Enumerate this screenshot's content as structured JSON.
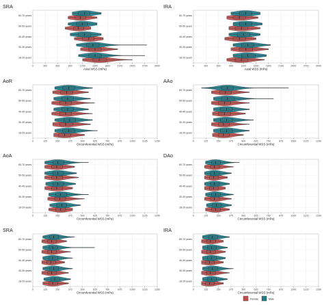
{
  "colors": {
    "female": "#c0504d",
    "male": "#1f7f8c",
    "outline": "#3a3a3a"
  },
  "legend": {
    "female": "Female",
    "male": "Male"
  },
  "chart_data": [
    {
      "type": "violin",
      "title": "SRA",
      "xlabel": "Axial WSS (mPa)",
      "xlim": [
        0,
        3000
      ],
      "xticks": [
        0,
        300,
        600,
        900,
        1200,
        1500,
        1800,
        2100,
        2400,
        2700,
        3000
      ],
      "categories": [
        "60-70 years",
        "50-59 years",
        "40-49 years",
        "30-39 years",
        "18-29 years"
      ],
      "series": [
        {
          "name": "Female",
          "median": [
            1150,
            1100,
            1350,
            1500,
            1600
          ],
          "q1": [
            1020,
            980,
            1200,
            1350,
            1450
          ],
          "q3": [
            1280,
            1230,
            1480,
            1650,
            1780
          ],
          "min": [
            850,
            780,
            1000,
            1150,
            1200
          ],
          "max": [
            1550,
            1400,
            1700,
            2050,
            2400
          ]
        },
        {
          "name": "Male",
          "median": [
            1250,
            1200,
            1250,
            1450,
            1500
          ],
          "q1": [
            1100,
            1050,
            1100,
            1300,
            1350
          ],
          "q3": [
            1380,
            1330,
            1400,
            1600,
            1650
          ],
          "min": [
            950,
            850,
            900,
            1050,
            1100
          ],
          "max": [
            1650,
            1550,
            1650,
            2750,
            2700
          ]
        }
      ]
    },
    {
      "type": "violin",
      "title": "IRA",
      "xlabel": "Axial WSS (mPa)",
      "xlim": [
        0,
        3000
      ],
      "xticks": [
        0,
        300,
        600,
        900,
        1200,
        1500,
        1800,
        2100,
        2400,
        2700,
        3000
      ],
      "categories": [
        "60-70 years",
        "50-59 years",
        "40-49 years",
        "30-39 years",
        "18-29 years"
      ],
      "series": [
        {
          "name": "Female",
          "median": [
            1100,
            1150,
            1100,
            1250,
            1150
          ],
          "q1": [
            950,
            1000,
            950,
            1100,
            1000
          ],
          "q3": [
            1250,
            1300,
            1250,
            1420,
            1300
          ],
          "min": [
            800,
            850,
            750,
            900,
            800
          ],
          "max": [
            1550,
            1600,
            1500,
            1800,
            1700
          ]
        },
        {
          "name": "Male",
          "median": [
            1250,
            1250,
            1200,
            1300,
            1300
          ],
          "q1": [
            1100,
            1100,
            1050,
            1150,
            1150
          ],
          "q3": [
            1400,
            1400,
            1350,
            1450,
            1480
          ],
          "min": [
            900,
            950,
            850,
            950,
            950
          ],
          "max": [
            1600,
            1650,
            1600,
            1850,
            1750
          ]
        }
      ]
    },
    {
      "type": "violin",
      "title": "AoR",
      "xlabel": "Circumferential WSS (mPa)",
      "xlim": [
        0,
        1250
      ],
      "xticks": [
        0,
        125,
        250,
        375,
        500,
        625,
        750,
        875,
        1000,
        1125,
        1250
      ],
      "categories": [
        "60-70 years",
        "50-59 years",
        "40-49 years",
        "30-39 years",
        "18-29 years"
      ],
      "series": [
        {
          "name": "Female",
          "median": [
            340,
            330,
            330,
            330,
            320
          ],
          "q1": [
            280,
            270,
            270,
            270,
            260
          ],
          "q3": [
            400,
            390,
            390,
            400,
            380
          ],
          "min": [
            200,
            190,
            190,
            200,
            210
          ],
          "max": [
            560,
            620,
            600,
            580,
            520
          ]
        },
        {
          "name": "Male",
          "median": [
            360,
            350,
            350,
            370,
            360
          ],
          "q1": [
            300,
            290,
            290,
            310,
            300
          ],
          "q3": [
            420,
            410,
            410,
            430,
            420
          ],
          "min": [
            220,
            210,
            210,
            220,
            220
          ],
          "max": [
            600,
            580,
            560,
            600,
            650
          ]
        }
      ]
    },
    {
      "type": "violin",
      "title": "AAo",
      "xlabel": "Circumferential WSS (mPa)",
      "xlim": [
        0,
        1250
      ],
      "xticks": [
        0,
        125,
        250,
        375,
        500,
        625,
        750,
        875,
        1000,
        1125,
        1250
      ],
      "categories": [
        "60-70 years",
        "50-59 years",
        "40-49 years",
        "30-39 years",
        "18-29 years"
      ],
      "series": [
        {
          "name": "Female",
          "median": [
            320,
            310,
            310,
            300,
            300
          ],
          "q1": [
            260,
            250,
            250,
            250,
            250
          ],
          "q3": [
            380,
            370,
            370,
            360,
            360
          ],
          "min": [
            180,
            180,
            190,
            180,
            190
          ],
          "max": [
            560,
            560,
            520,
            560,
            500
          ]
        },
        {
          "name": "Male",
          "median": [
            340,
            340,
            330,
            330,
            330
          ],
          "q1": [
            280,
            280,
            270,
            270,
            270
          ],
          "q3": [
            400,
            410,
            390,
            390,
            390
          ],
          "min": [
            80,
            200,
            200,
            200,
            200
          ],
          "max": [
            950,
            800,
            560,
            600,
            560
          ]
        }
      ]
    },
    {
      "type": "violin",
      "title": "AoA",
      "xlabel": "Circumferential WSS (mPa)",
      "xlim": [
        0,
        1250
      ],
      "xticks": [
        0,
        125,
        250,
        375,
        500,
        625,
        750,
        875,
        1000,
        1125,
        1250
      ],
      "categories": [
        "60-70 years",
        "50-59 years",
        "40-49 years",
        "30-39 years",
        "18-29 years"
      ],
      "series": [
        {
          "name": "Female",
          "median": [
            240,
            240,
            240,
            270,
            280
          ],
          "q1": [
            190,
            190,
            190,
            220,
            230
          ],
          "q3": [
            300,
            300,
            300,
            330,
            330
          ],
          "min": [
            120,
            120,
            120,
            150,
            160
          ],
          "max": [
            420,
            460,
            400,
            520,
            400
          ]
        },
        {
          "name": "Male",
          "median": [
            250,
            250,
            250,
            280,
            290
          ],
          "q1": [
            200,
            200,
            200,
            230,
            240
          ],
          "q3": [
            310,
            310,
            310,
            340,
            340
          ],
          "min": [
            120,
            120,
            130,
            160,
            170
          ],
          "max": [
            560,
            440,
            430,
            560,
            480
          ]
        }
      ]
    },
    {
      "type": "violin",
      "title": "DAo",
      "xlabel": "Circumferential WSS (mPa)",
      "xlim": [
        0,
        1250
      ],
      "xticks": [
        0,
        125,
        250,
        375,
        500,
        625,
        750,
        875,
        1000,
        1125,
        1250
      ],
      "categories": [
        "60-70 years",
        "50-59 years",
        "40-49 years",
        "30-39 years",
        "18-29 years"
      ],
      "series": [
        {
          "name": "Female",
          "median": [
            210,
            200,
            200,
            210,
            220
          ],
          "q1": [
            170,
            160,
            160,
            170,
            180
          ],
          "q3": [
            260,
            250,
            250,
            260,
            270
          ],
          "min": [
            110,
            110,
            110,
            110,
            120
          ],
          "max": [
            400,
            340,
            320,
            380,
            360
          ]
        },
        {
          "name": "Male",
          "median": [
            220,
            210,
            210,
            220,
            230
          ],
          "q1": [
            180,
            170,
            170,
            180,
            190
          ],
          "q3": [
            270,
            260,
            260,
            270,
            280
          ],
          "min": [
            120,
            110,
            110,
            120,
            130
          ],
          "max": [
            460,
            380,
            360,
            400,
            380
          ]
        }
      ]
    },
    {
      "type": "violin",
      "title": "SRA",
      "xlabel": "Circumferential WSS (mPa)",
      "xlim": [
        0,
        1250
      ],
      "xticks": [
        0,
        125,
        250,
        375,
        500,
        625,
        750,
        875,
        1000,
        1125,
        1250
      ],
      "categories": [
        "60-70 years",
        "50-59 years",
        "40-49 years",
        "30-39 years",
        "18-29 years"
      ],
      "series": [
        {
          "name": "Female",
          "median": [
            190,
            190,
            180,
            190,
            200
          ],
          "q1": [
            150,
            150,
            140,
            150,
            160
          ],
          "q3": [
            240,
            240,
            230,
            240,
            250
          ],
          "min": [
            90,
            90,
            90,
            90,
            100
          ],
          "max": [
            340,
            380,
            320,
            360,
            360
          ]
        },
        {
          "name": "Male",
          "median": [
            210,
            200,
            200,
            210,
            220
          ],
          "q1": [
            170,
            160,
            160,
            170,
            180
          ],
          "q3": [
            260,
            250,
            250,
            260,
            270
          ],
          "min": [
            100,
            100,
            100,
            100,
            110
          ],
          "max": [
            420,
            620,
            400,
            400,
            380
          ]
        }
      ]
    },
    {
      "type": "violin",
      "title": "IRA",
      "xlabel": "Circumferential WSS (mPa)",
      "xlim": [
        0,
        1250
      ],
      "xticks": [
        0,
        125,
        250,
        375,
        500,
        625,
        750,
        875,
        1000,
        1125,
        1250
      ],
      "categories": [
        "60-70 years",
        "50-59 years",
        "40-49 years",
        "30-39 years",
        "18-29 years"
      ],
      "series": [
        {
          "name": "Female",
          "median": [
            170,
            170,
            160,
            170,
            160
          ],
          "q1": [
            130,
            130,
            120,
            130,
            120
          ],
          "q3": [
            220,
            220,
            210,
            220,
            210
          ],
          "min": [
            80,
            80,
            80,
            80,
            80
          ],
          "max": [
            300,
            320,
            300,
            360,
            300
          ]
        },
        {
          "name": "Male",
          "median": [
            190,
            180,
            180,
            190,
            180
          ],
          "q1": [
            150,
            140,
            140,
            150,
            140
          ],
          "q3": [
            240,
            230,
            230,
            240,
            230
          ],
          "min": [
            90,
            90,
            90,
            90,
            90
          ],
          "max": [
            360,
            340,
            320,
            400,
            340
          ]
        }
      ]
    }
  ]
}
